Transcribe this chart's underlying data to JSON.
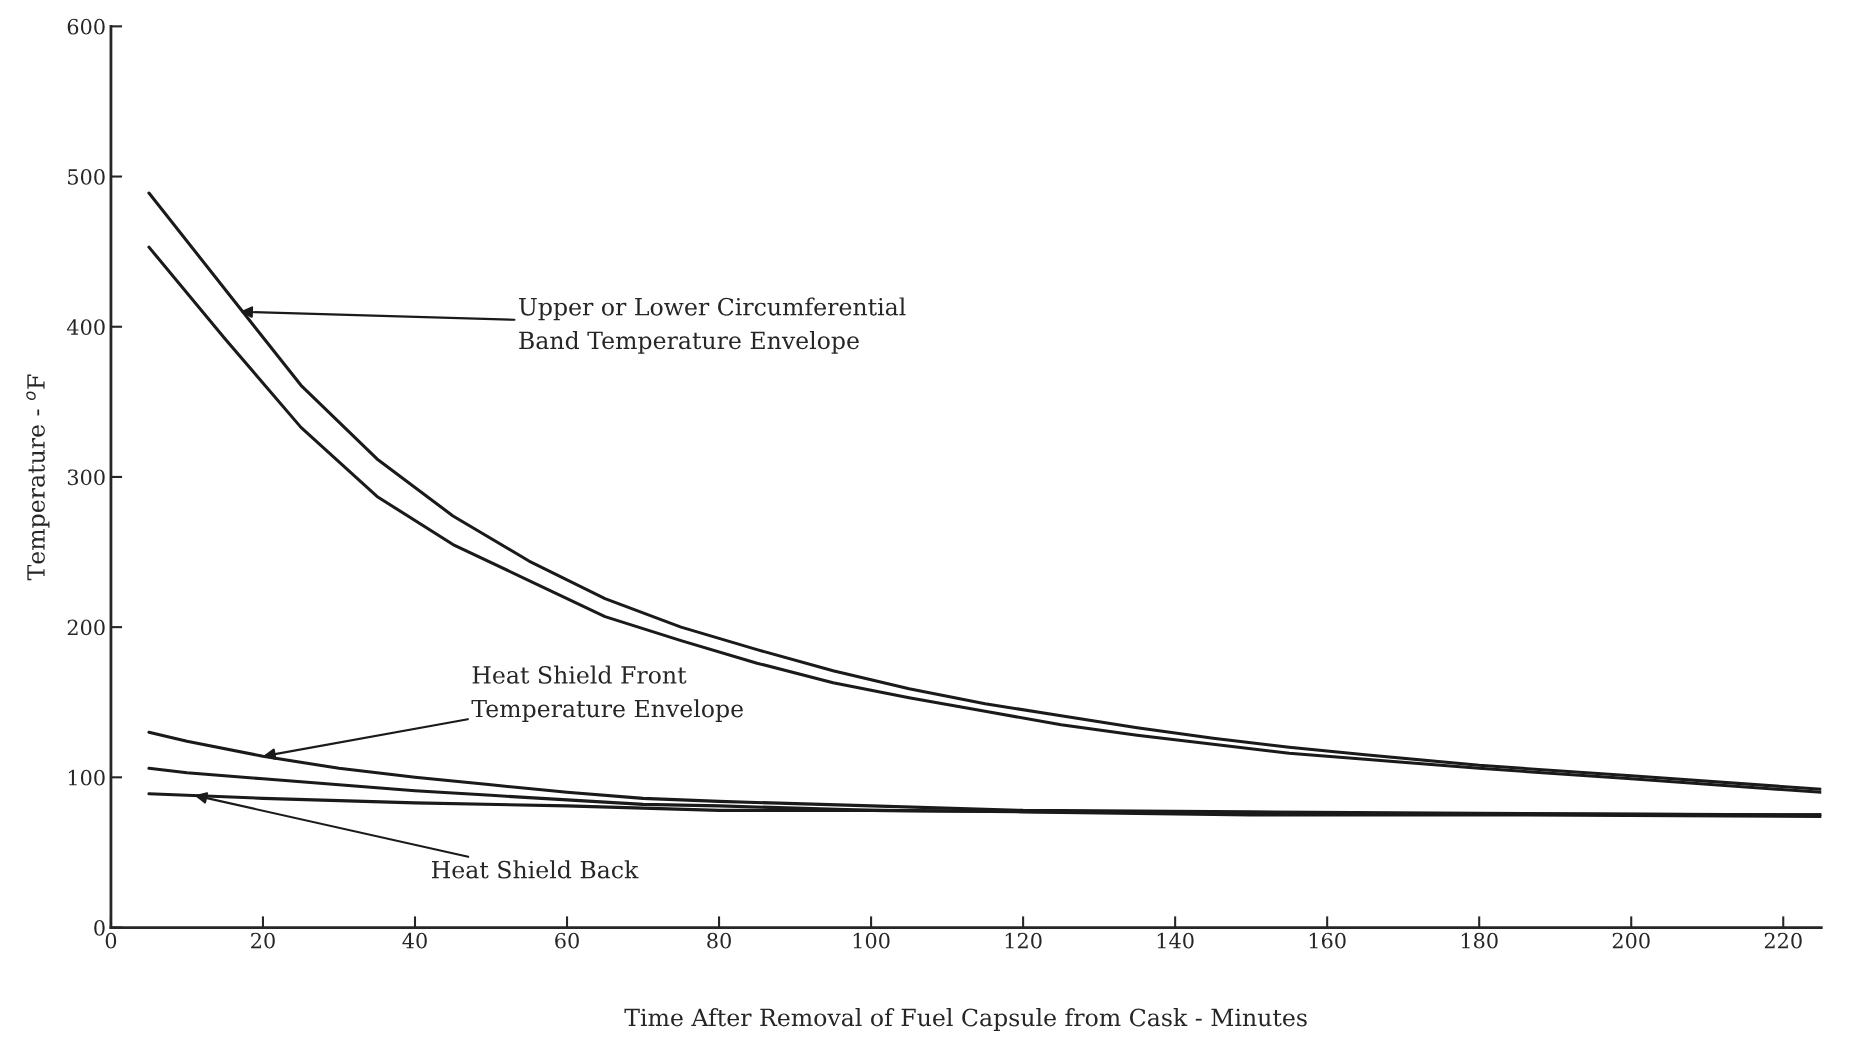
{
  "chart_data": {
    "type": "line",
    "xlabel": "Time After Removal of Fuel Capsule from Cask - Minutes",
    "ylabel": "Temperature - $^{o}$F",
    "xlim": [
      0,
      225
    ],
    "ylim": [
      0,
      600
    ],
    "xticks": [
      0,
      20,
      40,
      60,
      80,
      100,
      120,
      140,
      160,
      180,
      200,
      220
    ],
    "yticks": [
      0,
      100,
      200,
      300,
      400,
      500,
      600
    ],
    "grid": false,
    "marker": "none",
    "line_style": "solid",
    "series": [
      {
        "color": "#1a1a1a",
        "x": [
          5,
          15,
          25,
          35,
          45,
          55,
          65,
          75,
          85,
          95,
          105,
          115,
          125,
          135,
          145,
          155,
          165,
          180,
          200,
          225
        ],
        "values": [
          489,
          425,
          361,
          312,
          274,
          244,
          219,
          200,
          185,
          171,
          159,
          149,
          141,
          133,
          126,
          120,
          115,
          108,
          101,
          92
        ]
      },
      {
        "color": "#1a1a1a",
        "x": [
          5,
          15,
          25,
          35,
          45,
          55,
          65,
          75,
          85,
          95,
          105,
          115,
          125,
          135,
          145,
          155,
          165,
          180,
          200,
          225
        ],
        "values": [
          453,
          392,
          333,
          287,
          255,
          231,
          207,
          191,
          176,
          163,
          153,
          144,
          135,
          128,
          122,
          116,
          112,
          106,
          99,
          90
        ]
      },
      {
        "color": "#1a1a1a",
        "x": [
          5,
          10,
          20,
          30,
          40,
          50,
          60,
          70,
          80,
          100,
          120,
          150,
          180,
          225
        ],
        "values": [
          130,
          124,
          114,
          106,
          100,
          95,
          90,
          86,
          84,
          81,
          78,
          77,
          76,
          75
        ]
      },
      {
        "color": "#1a1a1a",
        "x": [
          5,
          10,
          20,
          30,
          40,
          50,
          60,
          70,
          80,
          100,
          120,
          150,
          180,
          225
        ],
        "values": [
          106,
          103,
          99,
          95,
          91,
          88,
          85,
          82,
          81,
          78,
          77,
          75,
          75,
          74
        ]
      },
      {
        "color": "#1a1a1a",
        "x": [
          5,
          20,
          40,
          60,
          80,
          100,
          150,
          225
        ],
        "values": [
          89,
          86,
          83,
          81,
          78,
          78,
          76,
          75
        ]
      }
    ],
    "annotations": [
      {
        "text": "Upper or Lower Circumferential\nBand Temperature Envelope",
        "x": 17,
        "y": 410
      },
      {
        "text": "Heat Shield Front\nTemperature Envelope",
        "x": 20,
        "y": 114
      },
      {
        "text": "Heat Shield Back",
        "x": 11,
        "y": 88
      }
    ]
  }
}
